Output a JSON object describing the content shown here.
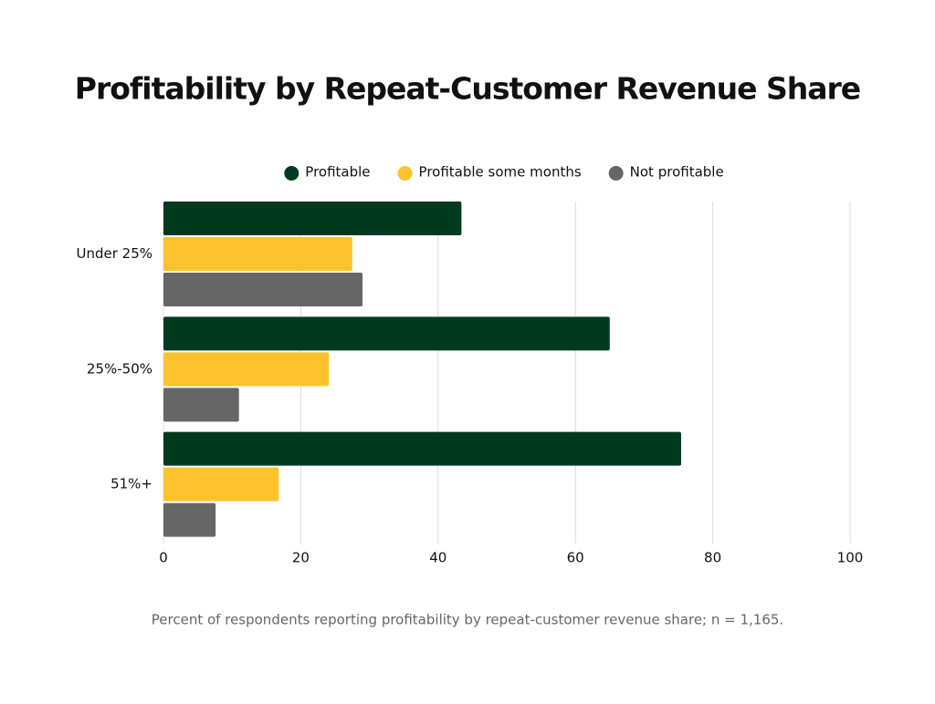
{
  "chart_data": {
    "type": "hbar",
    "title": "Profitability by Repeat-Customer Revenue Share",
    "caption": "Percent of respondents reporting profitability by repeat-customer revenue share; n = 1,165.",
    "categories": [
      "Under 25%",
      "25%-50%",
      "51%+"
    ],
    "series": [
      {
        "name": "Profitable",
        "color": "#003b20",
        "values": [
          43.4,
          65.0,
          75.4
        ]
      },
      {
        "name": "Profitable some months",
        "color": "#fcc22e",
        "values": [
          27.5,
          24.1,
          16.8
        ]
      },
      {
        "name": "Not profitable",
        "color": "#666666",
        "values": [
          29.0,
          11.0,
          7.6
        ]
      }
    ],
    "xlim": [
      0,
      100
    ],
    "xticks": [
      0,
      20,
      40,
      60,
      80,
      100
    ],
    "grid": true,
    "legend": "top"
  }
}
